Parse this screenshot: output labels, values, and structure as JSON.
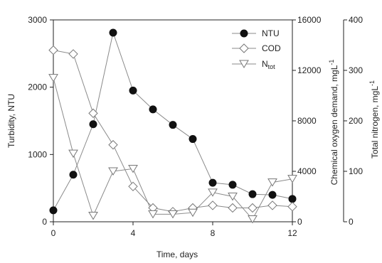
{
  "chart_data": {
    "type": "line",
    "x_title": "Time, days",
    "x_ticks": [
      0,
      4,
      8,
      12
    ],
    "xlim": [
      0,
      12
    ],
    "axes": {
      "left": {
        "title": "Turbidity, NTU",
        "ylim": [
          0,
          3000
        ],
        "ticks": [
          0,
          1000,
          2000,
          3000
        ]
      },
      "right1": {
        "title_main": "Chemical oxygen demand, mgL",
        "title_sup": "-1",
        "ylim": [
          0,
          16000
        ],
        "ticks": [
          0,
          4000,
          8000,
          12000,
          16000
        ]
      },
      "right2": {
        "title_main": "Total nitrogen, mgL",
        "title_sup": "-1",
        "ylim": [
          0,
          400
        ],
        "ticks": [
          0,
          100,
          200,
          300,
          400
        ]
      }
    },
    "series": [
      {
        "name": "NTU",
        "axis": "left",
        "marker": "filled-circle",
        "x": [
          0,
          1,
          2,
          3,
          4,
          5,
          6,
          7,
          8,
          9,
          10,
          11,
          12
        ],
        "y": [
          170,
          700,
          1450,
          2810,
          1950,
          1670,
          1440,
          1230,
          580,
          550,
          410,
          400,
          340
        ]
      },
      {
        "name": "COD",
        "axis": "right1",
        "marker": "open-diamond",
        "x": [
          0,
          1,
          2,
          3,
          4,
          5,
          6,
          7,
          8,
          9,
          10,
          11,
          12
        ],
        "y": [
          13600,
          13300,
          8600,
          6100,
          2800,
          1100,
          800,
          1100,
          1300,
          1100,
          1100,
          1300,
          1200
        ]
      },
      {
        "name_main": "N",
        "name_sub": "tot",
        "axis": "right2",
        "marker": "open-triangle-down",
        "x": [
          0,
          1,
          2,
          3,
          4,
          5,
          6,
          7,
          8,
          9,
          10,
          11,
          12
        ],
        "y": [
          285,
          135,
          12,
          100,
          105,
          15,
          15,
          18,
          58,
          50,
          5,
          78,
          85
        ]
      }
    ]
  }
}
